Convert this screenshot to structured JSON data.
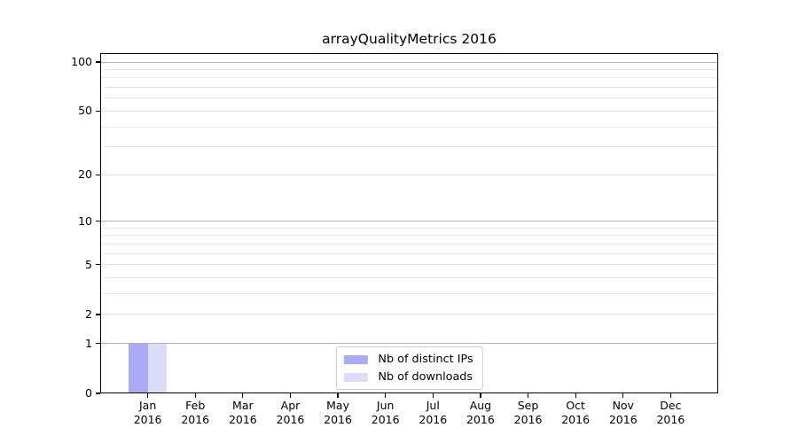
{
  "chart_data": {
    "type": "bar",
    "title": "arrayQualityMetrics 2016",
    "x_categories_month": [
      "Jan",
      "Feb",
      "Mar",
      "Apr",
      "May",
      "Jun",
      "Jul",
      "Aug",
      "Sep",
      "Oct",
      "Nov",
      "Dec"
    ],
    "x_categories_year": "2016",
    "series": [
      {
        "name": "Nb of distinct IPs",
        "color": "#a9a9f5",
        "values": [
          1,
          0,
          0,
          0,
          0,
          0,
          0,
          0,
          0,
          0,
          0,
          0
        ]
      },
      {
        "name": "Nb of downloads",
        "color": "#dcdcf9",
        "values": [
          1,
          0,
          0,
          0,
          0,
          0,
          0,
          0,
          0,
          0,
          0,
          0
        ]
      }
    ],
    "y_scale": "log1p",
    "ylim": [
      0,
      113
    ],
    "y_tick_values": [
      0,
      1,
      2,
      5,
      10,
      20,
      50,
      100
    ],
    "y_tick_labels": [
      "0",
      "1",
      "2",
      "5",
      "10",
      "20",
      "50",
      "100"
    ],
    "y_gridlines_major": [
      1,
      10,
      100
    ],
    "y_gridlines_minor": [
      2,
      3,
      4,
      5,
      6,
      7,
      8,
      9,
      20,
      30,
      40,
      50,
      60,
      70,
      80,
      90
    ],
    "grid": true,
    "legend_position": "lower center",
    "colors": {
      "grid_major": "#b3b3b3",
      "grid_minor": "#e8e8e8",
      "spine": "#000000",
      "text": "#000000",
      "background": "#ffffff"
    }
  }
}
